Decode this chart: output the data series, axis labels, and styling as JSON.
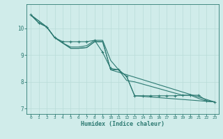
{
  "xlabel": "Humidex (Indice chaleur)",
  "ylabel": "",
  "bg_color": "#d0ecea",
  "grid_color": "#b8dbd8",
  "line_color": "#2d7a72",
  "xlim": [
    -0.5,
    23.5
  ],
  "ylim": [
    6.8,
    10.9
  ],
  "xticks": [
    0,
    1,
    2,
    3,
    4,
    5,
    6,
    7,
    8,
    9,
    10,
    11,
    12,
    13,
    14,
    15,
    16,
    17,
    18,
    19,
    20,
    21,
    22,
    23
  ],
  "yticks": [
    7,
    8,
    9,
    10
  ],
  "line1_x": [
    0,
    1,
    2,
    3,
    4,
    5,
    6,
    7,
    8,
    9,
    10,
    11,
    12,
    13,
    14,
    15,
    16,
    17,
    18,
    19,
    20,
    21,
    22,
    23
  ],
  "line1_y": [
    10.5,
    10.2,
    10.05,
    9.65,
    9.5,
    9.5,
    9.5,
    9.5,
    9.55,
    9.1,
    8.5,
    8.45,
    8.2,
    7.48,
    7.48,
    7.48,
    7.48,
    7.48,
    7.48,
    7.5,
    7.5,
    7.5,
    7.3,
    7.25
  ],
  "line2_x": [
    0,
    1,
    2,
    3,
    4,
    5,
    6,
    7,
    8,
    9,
    10,
    11,
    12,
    13,
    23
  ],
  "line2_y": [
    10.5,
    10.2,
    10.05,
    9.65,
    9.45,
    9.3,
    9.3,
    9.35,
    9.55,
    9.55,
    8.8,
    8.45,
    8.2,
    7.48,
    7.25
  ],
  "line3_x": [
    0,
    2,
    3,
    4,
    5,
    6,
    7,
    8,
    9,
    10,
    11,
    12,
    13,
    19,
    20,
    21,
    22,
    23
  ],
  "line3_y": [
    10.5,
    10.05,
    9.65,
    9.45,
    9.25,
    9.25,
    9.28,
    9.5,
    9.5,
    8.45,
    8.45,
    8.05,
    8.0,
    7.5,
    7.5,
    7.38,
    7.28,
    7.25
  ],
  "line4_x": [
    0,
    2,
    3,
    5,
    6,
    7,
    8,
    9,
    10,
    23
  ],
  "line4_y": [
    10.5,
    10.05,
    9.65,
    9.25,
    9.25,
    9.28,
    9.5,
    9.5,
    8.45,
    7.25
  ]
}
